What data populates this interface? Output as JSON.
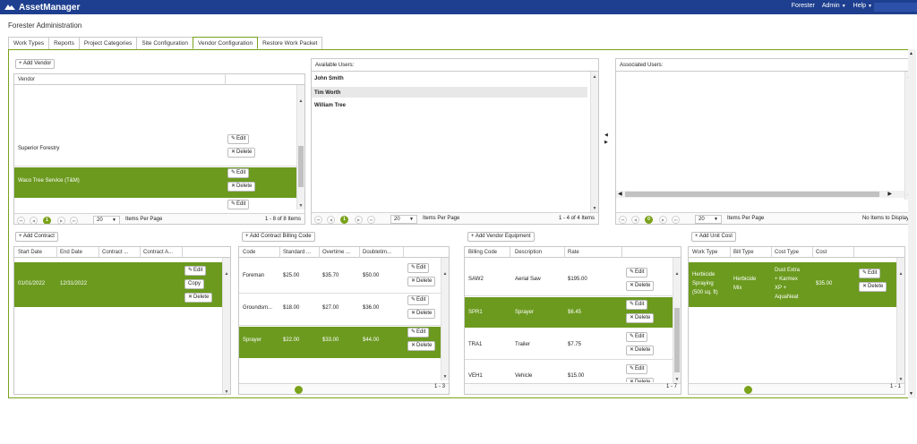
{
  "app": {
    "name": "AssetManager"
  },
  "topnav": {
    "user": "Forester",
    "admin": "Admin",
    "help": "Help"
  },
  "page_title": "Forester Administration",
  "tabs": [
    {
      "label": "Work Types"
    },
    {
      "label": "Reports"
    },
    {
      "label": "Project Categories"
    },
    {
      "label": "Site Configuration"
    },
    {
      "label": "Vendor Configuration",
      "active": true
    },
    {
      "label": "Restore Work Packet"
    }
  ],
  "common": {
    "edit": "Edit",
    "delete": "Delete",
    "copy": "Copy",
    "per_page": "20",
    "items_per_page": "Items Per Page"
  },
  "vendor": {
    "add_label": "+ Add Vendor",
    "header": "Vendor",
    "rows": [
      {
        "name": "Superior Forestry"
      },
      {
        "name": "Waco Tree Service (T&M)",
        "selected": true
      }
    ],
    "current_page": "1",
    "count": "1 - 8 of 8 Items"
  },
  "available_users": {
    "header": "Available Users:",
    "users": [
      "John Smith",
      "Tim Worth",
      "William Tree"
    ],
    "current_page": "1",
    "count": "1 - 4 of 4 Items"
  },
  "associated_users": {
    "header": "Associated Users:",
    "current_page": "0",
    "count": "No Items to Display"
  },
  "contract": {
    "add_label": "+ Add Contract",
    "headers": [
      "Start Date",
      "End Date",
      "Contract ...",
      "Contract A..."
    ],
    "rows": [
      {
        "start": "01/01/2022",
        "end": "12/31/2022"
      }
    ]
  },
  "billing": {
    "add_label": "+ Add Contract Billing Code",
    "headers": [
      "Code",
      "Standard ...",
      "Overtime ...",
      "Doubletim..."
    ],
    "rows": [
      {
        "code": "Foreman",
        "standard": "$25.00",
        "overtime": "$35.70",
        "double": "$50.00"
      },
      {
        "code": "Groundsm...",
        "standard": "$18.00",
        "overtime": "$27.00",
        "double": "$36.00"
      },
      {
        "code": "Sprayer",
        "standard": "$22.00",
        "overtime": "$33.00",
        "double": "$44.00",
        "selected": true
      }
    ],
    "count": "1 - 3"
  },
  "equipment": {
    "add_label": "+ Add Vendor Equipment",
    "headers": [
      "Billing Code",
      "Description",
      "Rate"
    ],
    "rows": [
      {
        "code": "SAW2",
        "desc": "Aerial Saw",
        "rate": "$195.00"
      },
      {
        "code": "SPR1",
        "desc": "Sprayer",
        "rate": "$6.45",
        "selected": true
      },
      {
        "code": "TRA1",
        "desc": "Trailer",
        "rate": "$7.75"
      },
      {
        "code": "VEH1",
        "desc": "Vehicle",
        "rate": "$15.00"
      }
    ],
    "count": "1 - 7"
  },
  "unitcost": {
    "add_label": "+ Add Unit Cost",
    "headers": [
      "Work Type",
      "Bill Type",
      "Cost Type",
      "Cost"
    ],
    "row": {
      "work_type": [
        "Herbicide",
        "Spraying",
        "(500 sq. ft)"
      ],
      "bill_type": [
        "Herbicide",
        "Mix"
      ],
      "cost_type": [
        "Dust Extra",
        "+ Karmex",
        "XP +",
        "AquaNeat"
      ],
      "cost": "$35.00"
    },
    "count": "1 - 1"
  },
  "colors": {
    "header_bg": "#1e3f8f",
    "accent": "#7aa21a",
    "selected_row": "#6b9a1f"
  }
}
